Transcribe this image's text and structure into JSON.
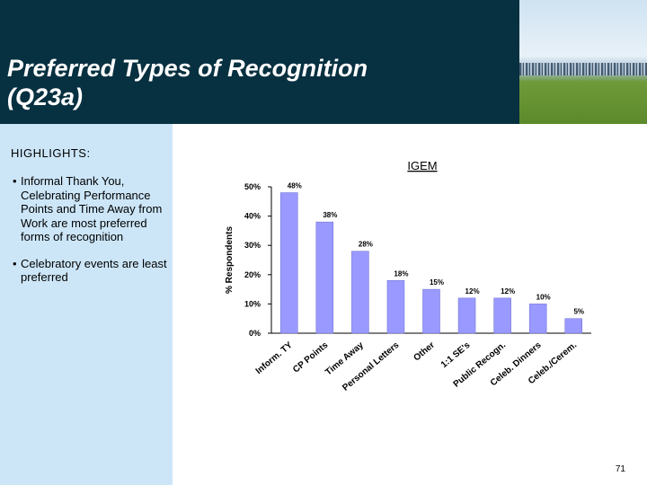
{
  "header": {
    "title_line1": "Preferred Types of Recognition",
    "title_line2": "(Q23a)",
    "background_color": "#073040"
  },
  "highlights": {
    "heading": "HIGHLIGHTS:",
    "bullets": [
      "Informal Thank You, Celebrating Performance Points and Time Away from Work are most preferred forms of recognition",
      "Celebratory events are least preferred"
    ]
  },
  "page_number": "71",
  "chart_data": {
    "type": "bar",
    "title": "IGEM",
    "ylabel": "% Respondents",
    "xlabel": "",
    "ylim": [
      0,
      50
    ],
    "yticks": [
      "0%",
      "10%",
      "20%",
      "30%",
      "40%",
      "50%"
    ],
    "categories": [
      "Inform. TY",
      "CP Points",
      "Time Away",
      "Personal Letters",
      "Other",
      "1:1 SE's",
      "Public Recogn.",
      "Celeb. Dinners",
      "Celeb./Cerem."
    ],
    "values": [
      48,
      38,
      28,
      18,
      15,
      12,
      12,
      10,
      5
    ],
    "data_labels": [
      "48%",
      "38%",
      "28%",
      "18%",
      "15%",
      "12%",
      "12%",
      "10%",
      "5%"
    ],
    "bar_color": "#9999ff",
    "grid": false
  }
}
